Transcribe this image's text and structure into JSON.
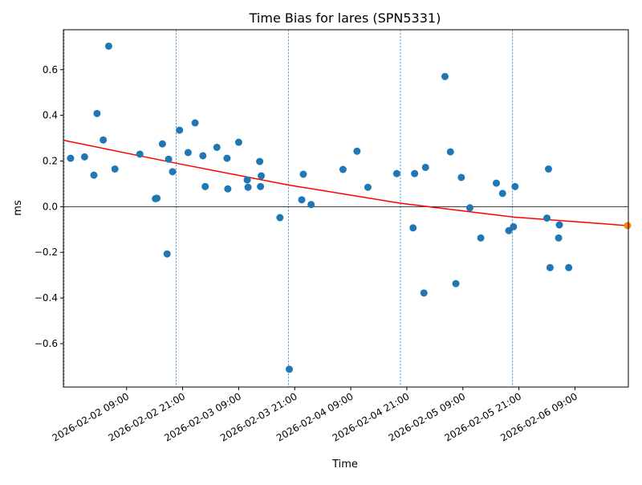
{
  "chart_data": {
    "type": "scatter",
    "title": "Time Bias for lares (SPN5331)",
    "xlabel": "Time",
    "ylabel": "ms",
    "xlim": [
      "2026-02-01T19:28",
      "2026-02-06T20:26"
    ],
    "ylim": [
      -0.79,
      0.775
    ],
    "x_ticks": [
      {
        "t": "2026-02-02T09:00",
        "label": "2026-02-02 09:00"
      },
      {
        "t": "2026-02-02T21:00",
        "label": "2026-02-02 21:00"
      },
      {
        "t": "2026-02-03T09:00",
        "label": "2026-02-03 09:00"
      },
      {
        "t": "2026-02-03T21:00",
        "label": "2026-02-03 21:00"
      },
      {
        "t": "2026-02-04T09:00",
        "label": "2026-02-04 09:00"
      },
      {
        "t": "2026-02-04T21:00",
        "label": "2026-02-04 21:00"
      },
      {
        "t": "2026-02-05T09:00",
        "label": "2026-02-05 09:00"
      },
      {
        "t": "2026-02-05T21:00",
        "label": "2026-02-05 21:00"
      },
      {
        "t": "2026-02-06T09:00",
        "label": "2026-02-06 09:00"
      }
    ],
    "y_ticks": [
      {
        "v": -0.6,
        "label": "−0.6"
      },
      {
        "v": -0.4,
        "label": "−0.4"
      },
      {
        "v": -0.2,
        "label": "−0.2"
      },
      {
        "v": 0.0,
        "label": "0.0"
      },
      {
        "v": 0.2,
        "label": "0.2"
      },
      {
        "v": 0.4,
        "label": "0.4"
      },
      {
        "v": 0.6,
        "label": "0.6"
      }
    ],
    "zero_line": 0,
    "day_separators": [
      "2026-02-01T19:38",
      "2026-02-02T19:38",
      "2026-02-03T19:38",
      "2026-02-04T19:38",
      "2026-02-05T19:38"
    ],
    "fit_line": {
      "color": "#ff0000",
      "points": [
        {
          "t": "2026-02-01T19:38",
          "y": 0.29
        },
        {
          "t": "2026-02-02T19:38",
          "y": 0.19
        },
        {
          "t": "2026-02-03T19:38",
          "y": 0.095
        },
        {
          "t": "2026-02-04T19:38",
          "y": 0.015
        },
        {
          "t": "2026-02-05T19:38",
          "y": -0.045
        },
        {
          "t": "2026-02-06T19:38",
          "y": -0.082
        }
      ]
    },
    "series": [
      {
        "color": "#1f77b4",
        "points": [
          {
            "t": "2026-02-01T21:00",
            "y": 0.212
          },
          {
            "t": "2026-02-02T00:00",
            "y": 0.218
          },
          {
            "t": "2026-02-02T02:00",
            "y": 0.138
          },
          {
            "t": "2026-02-02T02:40",
            "y": 0.408
          },
          {
            "t": "2026-02-02T04:00",
            "y": 0.292
          },
          {
            "t": "2026-02-02T05:10",
            "y": 0.703
          },
          {
            "t": "2026-02-02T06:30",
            "y": 0.165
          },
          {
            "t": "2026-02-02T11:50",
            "y": 0.23
          },
          {
            "t": "2026-02-02T15:10",
            "y": 0.035
          },
          {
            "t": "2026-02-02T15:30",
            "y": 0.037
          },
          {
            "t": "2026-02-02T16:40",
            "y": 0.275
          },
          {
            "t": "2026-02-02T17:40",
            "y": -0.207
          },
          {
            "t": "2026-02-02T18:00",
            "y": 0.208
          },
          {
            "t": "2026-02-02T18:50",
            "y": 0.153
          },
          {
            "t": "2026-02-02T20:20",
            "y": 0.335
          },
          {
            "t": "2026-02-02T22:10",
            "y": 0.237
          },
          {
            "t": "2026-02-02T23:40",
            "y": 0.367
          },
          {
            "t": "2026-02-03T01:20",
            "y": 0.223
          },
          {
            "t": "2026-02-03T01:50",
            "y": 0.088
          },
          {
            "t": "2026-02-03T04:20",
            "y": 0.26
          },
          {
            "t": "2026-02-03T06:30",
            "y": 0.212
          },
          {
            "t": "2026-02-03T06:40",
            "y": 0.078
          },
          {
            "t": "2026-02-03T09:00",
            "y": 0.282
          },
          {
            "t": "2026-02-03T10:50",
            "y": 0.117
          },
          {
            "t": "2026-02-03T11:00",
            "y": 0.085
          },
          {
            "t": "2026-02-03T13:30",
            "y": 0.198
          },
          {
            "t": "2026-02-03T13:50",
            "y": 0.135
          },
          {
            "t": "2026-02-03T13:40",
            "y": 0.088
          },
          {
            "t": "2026-02-03T17:50",
            "y": -0.048
          },
          {
            "t": "2026-02-03T19:50",
            "y": -0.712
          },
          {
            "t": "2026-02-03T22:30",
            "y": 0.03
          },
          {
            "t": "2026-02-03T22:50",
            "y": 0.142
          },
          {
            "t": "2026-02-04T00:30",
            "y": 0.009
          },
          {
            "t": "2026-02-04T07:20",
            "y": 0.163
          },
          {
            "t": "2026-02-04T10:20",
            "y": 0.243
          },
          {
            "t": "2026-02-04T12:40",
            "y": 0.085
          },
          {
            "t": "2026-02-04T18:50",
            "y": 0.145
          },
          {
            "t": "2026-02-04T22:20",
            "y": -0.093
          },
          {
            "t": "2026-02-04T22:40",
            "y": 0.145
          },
          {
            "t": "2026-02-05T00:40",
            "y": -0.378
          },
          {
            "t": "2026-02-05T01:00",
            "y": 0.172
          },
          {
            "t": "2026-02-05T05:10",
            "y": 0.57
          },
          {
            "t": "2026-02-05T06:20",
            "y": 0.24
          },
          {
            "t": "2026-02-05T07:30",
            "y": -0.337
          },
          {
            "t": "2026-02-05T08:40",
            "y": 0.128
          },
          {
            "t": "2026-02-05T10:30",
            "y": -0.005
          },
          {
            "t": "2026-02-05T12:50",
            "y": -0.137
          },
          {
            "t": "2026-02-05T16:10",
            "y": 0.103
          },
          {
            "t": "2026-02-05T17:30",
            "y": 0.058
          },
          {
            "t": "2026-02-05T18:50",
            "y": -0.105
          },
          {
            "t": "2026-02-05T19:50",
            "y": -0.088
          },
          {
            "t": "2026-02-05T20:10",
            "y": 0.088
          },
          {
            "t": "2026-02-06T03:00",
            "y": -0.05
          },
          {
            "t": "2026-02-06T03:20",
            "y": 0.165
          },
          {
            "t": "2026-02-06T03:40",
            "y": -0.267
          },
          {
            "t": "2026-02-06T05:40",
            "y": -0.08
          },
          {
            "t": "2026-02-06T05:30",
            "y": -0.137
          },
          {
            "t": "2026-02-06T07:40",
            "y": -0.267
          }
        ]
      }
    ],
    "highlight_point": {
      "t": "2026-02-06T20:16",
      "y": -0.083,
      "color": "#ff7f0e"
    }
  }
}
